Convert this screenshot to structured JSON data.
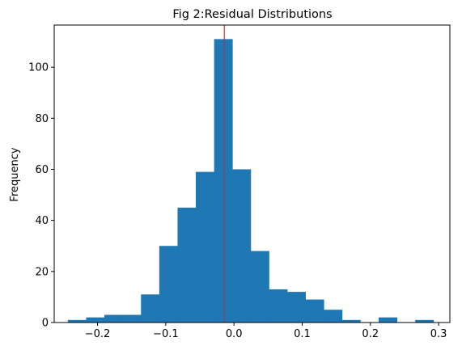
{
  "chart_data": {
    "type": "bar",
    "title": "Fig 2:Residual Distributions",
    "xlabel": "",
    "ylabel": "Frequency",
    "xlim": [
      -0.2635,
      0.3165
    ],
    "ylim": [
      0,
      116.5
    ],
    "x_ticks": [
      -0.2,
      -0.1,
      0.0,
      0.1,
      0.2,
      0.3
    ],
    "x_tick_labels": [
      "−0.2",
      "−0.1",
      "0.0",
      "0.1",
      "0.2",
      "0.3"
    ],
    "y_ticks": [
      0,
      20,
      40,
      60,
      80,
      100
    ],
    "y_tick_labels": [
      "0",
      "20",
      "40",
      "60",
      "80",
      "100"
    ],
    "bin_edges": [
      -0.2435,
      -0.2167,
      -0.1899,
      -0.1631,
      -0.1363,
      -0.1095,
      -0.0827,
      -0.0559,
      -0.0291,
      -0.0023,
      0.0245,
      0.0513,
      0.0781,
      0.1049,
      0.1317,
      0.1585,
      0.1853,
      0.2121,
      0.2389,
      0.2657,
      0.2925
    ],
    "values": [
      1,
      2,
      3,
      3,
      11,
      30,
      45,
      59,
      111,
      60,
      28,
      13,
      12,
      9,
      5,
      1,
      0,
      2,
      0,
      1
    ],
    "bar_color": "#1f77b4",
    "vline": {
      "x": -0.014,
      "color": "#d62728"
    },
    "grid": false,
    "legend": "none"
  }
}
